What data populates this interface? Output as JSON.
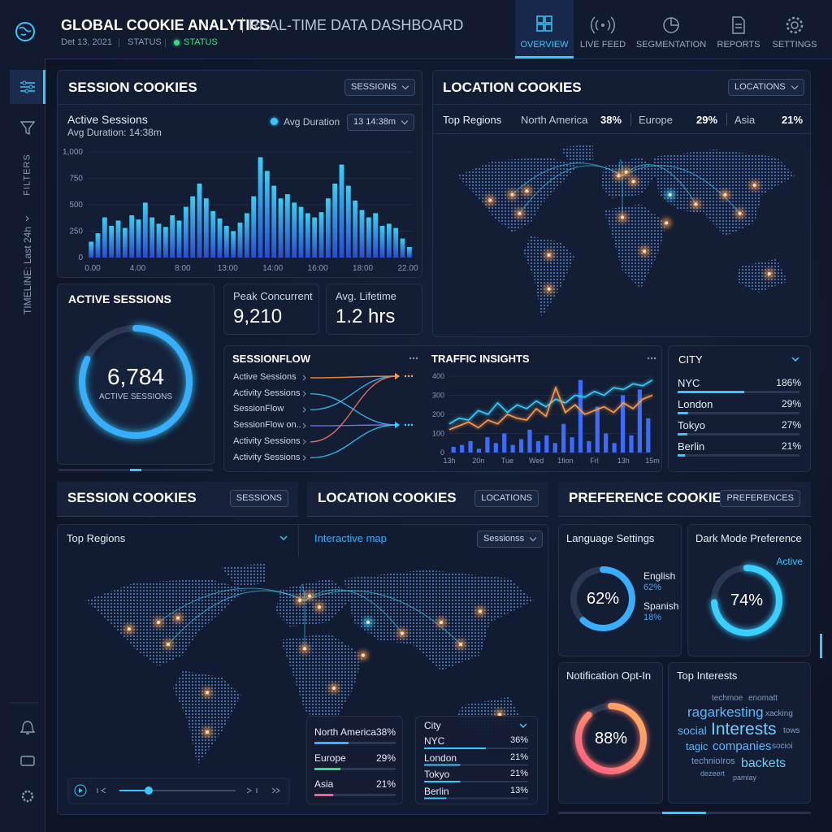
{
  "header": {
    "title": "GLOBAL COOKIE ANALYTICS",
    "subtitle": "REAL-TIME DATA DASHBOARD",
    "date": "Det 13, 2021",
    "status_label": "STATUS",
    "status": "STATUS"
  },
  "nav": [
    "OVERVIEW",
    "LIVE FEED",
    "SEGMENTATION",
    "REPORTS",
    "SETTINGS"
  ],
  "sidebar": {
    "filters": "FILTERS",
    "timeline": "TIMELINE: Last 24h"
  },
  "session_cookies": {
    "title": "SESSION COOKIES",
    "button": "SESSIONS",
    "metric": "Active Sessions",
    "avg_duration": "Avg Duration: 14:38m",
    "legend": "Avg Duration",
    "select": "13 14:38m",
    "chart": {
      "type": "bar",
      "xlabels": [
        "0.00",
        "4.00",
        "8:00",
        "13:00",
        "14:00",
        "16:00",
        "18:00",
        "22.00"
      ],
      "values": [
        150,
        230,
        380,
        300,
        350,
        280,
        400,
        360,
        520,
        380,
        320,
        290,
        400,
        350,
        480,
        580,
        700,
        560,
        440,
        370,
        300,
        250,
        330,
        420,
        580,
        950,
        820,
        680,
        560,
        600,
        520,
        480,
        420,
        380,
        430,
        560,
        700,
        880,
        680,
        540,
        450,
        380,
        420,
        300,
        320,
        280,
        180,
        100
      ],
      "ylim": [
        0,
        1000
      ],
      "yticks": [
        0,
        250,
        500,
        750,
        {
          "value": 1000,
          "label": "1,000"
        }
      ]
    }
  },
  "location_cookies": {
    "title": "LOCATION COOKIES",
    "button": "LOCATIONS",
    "label": "Top Regions",
    "regions": [
      {
        "name": "North America",
        "label": "38%"
      },
      {
        "name": "Europe",
        "label": "29%"
      },
      {
        "name": "Asia",
        "label": "21%"
      }
    ]
  },
  "active_sessions": {
    "title": "ACTIVE SESSIONS",
    "value": "6,784",
    "caption": "ACTIVE SESSIONS"
  },
  "peak": {
    "label": "Peak Concurrent",
    "value": "9,210"
  },
  "lifetime": {
    "label": "Avg. Lifetime",
    "value": "1.2 hrs"
  },
  "sessionflow": {
    "title": "SESSIONFLOW",
    "items": [
      "Active Sessions",
      "Activity Sessions",
      "SessionFlow",
      "SessionFlow on..",
      "Activity Sessions",
      "Activity Sessions"
    ]
  },
  "traffic": {
    "title": "TRAFFIC INSIGHTS",
    "chart": {
      "type": "line",
      "xlabels": [
        "13h",
        "20n",
        "Tue",
        "Wed",
        "1fion",
        "Frl",
        "13h",
        "15m"
      ],
      "series": [
        {
          "color": "#33d1ff",
          "values": [
            150,
            180,
            170,
            220,
            200,
            260,
            210,
            250,
            230,
            270,
            240,
            280,
            260,
            300,
            290,
            320,
            300,
            340,
            330,
            360,
            350,
            380
          ]
        },
        {
          "color": "#ff9a4a",
          "values": [
            120,
            140,
            160,
            130,
            170,
            150,
            200,
            180,
            170,
            230,
            190,
            340,
            210,
            250,
            200,
            220,
            240,
            210,
            260,
            230,
            280,
            300
          ]
        }
      ],
      "bars": {
        "color": "#3b6cff",
        "values": [
          30,
          40,
          60,
          20,
          80,
          50,
          100,
          40,
          70,
          120,
          60,
          90,
          50,
          150,
          80,
          380,
          60,
          240,
          100,
          50,
          300,
          90,
          330,
          180
        ]
      },
      "ylim": [
        0,
        400
      ],
      "yticks": [
        0,
        100,
        200,
        300,
        400
      ]
    }
  },
  "city": {
    "title": "CITY",
    "rows": [
      {
        "name": "NYC",
        "value": 186,
        "label": "186%"
      },
      {
        "name": "London",
        "value": 29,
        "label": "29%"
      },
      {
        "name": "Tokyo",
        "value": 27,
        "label": "27%"
      },
      {
        "name": "Berlin",
        "value": 21,
        "label": "21%"
      }
    ]
  },
  "bottom_session": {
    "title": "SESSION COOKIES",
    "button": "SESSIONS",
    "label": "Top Regions"
  },
  "bottom_location": {
    "title": "LOCATION COOKIES",
    "button": "LOCATIONS",
    "label": "Interactive map",
    "select": "Sessionss",
    "regions": [
      {
        "name": "North America",
        "value": 38,
        "label": "38%"
      },
      {
        "name": "Europe",
        "value": 29,
        "label": "29%"
      },
      {
        "name": "Asia",
        "value": 21,
        "label": "21%"
      }
    ],
    "cities": {
      "title": "City",
      "rows": [
        {
          "name": "NYC",
          "value": 36,
          "label": "36%"
        },
        {
          "name": "London",
          "value": 21,
          "label": "21%"
        },
        {
          "name": "Tokyo",
          "value": 21,
          "label": "21%"
        },
        {
          "name": "Berlin",
          "value": 13,
          "label": "13%"
        }
      ]
    }
  },
  "preference": {
    "title": "PREFERENCE COOKIES",
    "button": "PREFERENCES",
    "language": {
      "title": "Language Settings",
      "value": 62,
      "label": "62%",
      "items": [
        {
          "name": "English",
          "label": "62%"
        },
        {
          "name": "Spanish",
          "label": "18%"
        }
      ]
    },
    "dark_mode": {
      "title": "Dark Mode Preference",
      "status": "Active",
      "value": 74,
      "label": "74%"
    },
    "notification": {
      "title": "Notification Opt-In",
      "value": 88,
      "label": "88%"
    },
    "interests": {
      "title": "Top Interests",
      "words": [
        "techmoe",
        "enomatt",
        "ragarkesting",
        "xacking",
        "social",
        "Interests",
        "tows",
        "tagic",
        "companies",
        "socioi",
        "technioIros",
        "backets",
        "dezeert",
        "pamiay"
      ]
    }
  }
}
